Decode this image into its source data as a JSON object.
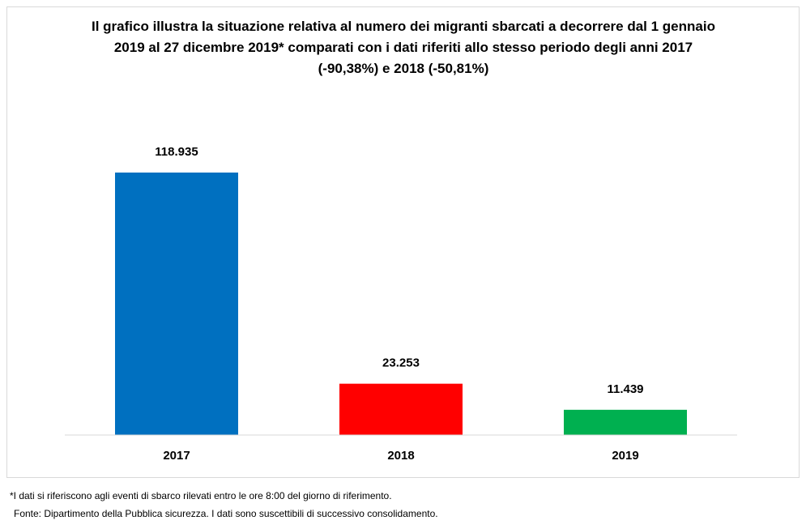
{
  "chart_data": {
    "type": "bar",
    "title": "Il grafico illustra la situazione relativa al numero dei migranti sbarcati a decorrere dal 1 gennaio 2019 al 27 dicembre 2019* comparati con i dati riferiti allo stesso periodo degli anni 2017 (-90,38%) e 2018 (-50,81%)",
    "categories": [
      "2017",
      "2018",
      "2019"
    ],
    "values": [
      118935,
      23253,
      11439
    ],
    "value_labels": [
      "118.935",
      "23.253",
      "11.439"
    ],
    "colors": [
      "#0070C0",
      "#FF0000",
      "#00B050"
    ],
    "xlabel": "",
    "ylabel": "",
    "ylim": [
      0,
      118935
    ],
    "grid": false,
    "legend": "none"
  },
  "footnotes": {
    "note": "*I dati si riferiscono agli eventi di sbarco rilevati entro le ore 8:00 del giorno di riferimento.",
    "source": "Fonte: Dipartimento della Pubblica sicurezza. I dati sono suscettibili di successivo consolidamento."
  },
  "colors": {
    "axis": "#d9d9d9",
    "frame_border": "#d9d9d9"
  }
}
